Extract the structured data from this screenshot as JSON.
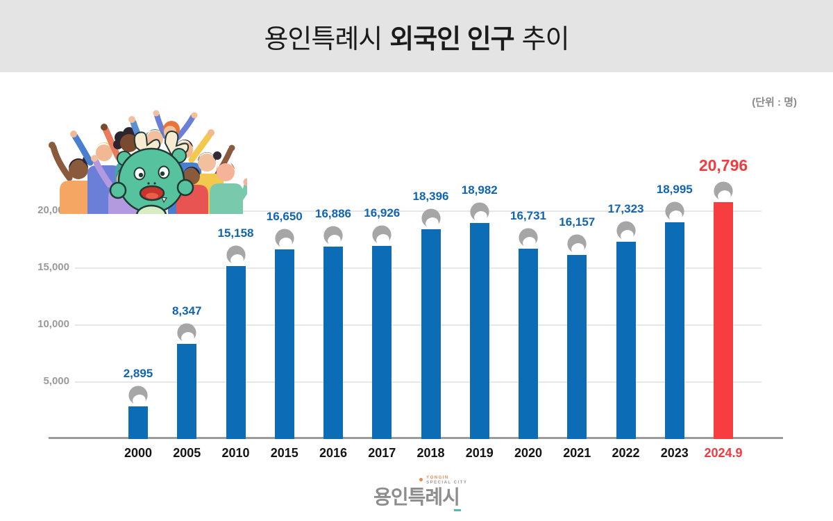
{
  "header": {
    "title_prefix": "용인특례시",
    "title_bold": "외국인 인구",
    "title_suffix": "추이"
  },
  "unit_label": "(단위 : 명)",
  "chart_data": {
    "type": "bar",
    "title": "용인특례시 외국인 인구 추이",
    "unit": "(단위 : 명)",
    "categories": [
      "2000",
      "2005",
      "2010",
      "2015",
      "2016",
      "2017",
      "2018",
      "2019",
      "2020",
      "2021",
      "2022",
      "2023",
      "2024.9"
    ],
    "values": [
      2895,
      8347,
      15158,
      16650,
      16886,
      16926,
      18396,
      18982,
      16731,
      16157,
      17323,
      18995,
      20796
    ],
    "value_labels": [
      "2,895",
      "8,347",
      "15,158",
      "16,650",
      "16,886",
      "16,926",
      "18,396",
      "18,982",
      "16,731",
      "16,157",
      "17,323",
      "18,995",
      "20,796"
    ],
    "highlight_index": 12,
    "ylim": [
      0,
      22000
    ],
    "yticks": [
      5000,
      10000,
      15000,
      20000
    ],
    "ytick_labels": [
      "5,000",
      "10,000",
      "15,000",
      "20,000"
    ],
    "grid": "horizontal",
    "legend": "none",
    "marker_icon": "person-head-icon",
    "colors": {
      "bar": "#0c6cb6",
      "bar_highlight": "#f63d3f",
      "value_label": "#1164b4",
      "value_label_highlight": "#f03c3e",
      "xtick": "#141414",
      "xtick_highlight": "#f03c3e",
      "ytick": "#9a9a9a",
      "gridline": "#e7e7e7",
      "axis": "#9b9b9b",
      "icon_gray": "#a6a6a6",
      "header_bg": "#e4e4e4"
    }
  },
  "illustration": {
    "name": "cheering-crowd-with-dragon-mascot"
  },
  "footer": {
    "logo_korean": "용인특례시",
    "logo_english_line1": "YONGIN",
    "logo_english_line2": "SPECIAL CITY"
  }
}
